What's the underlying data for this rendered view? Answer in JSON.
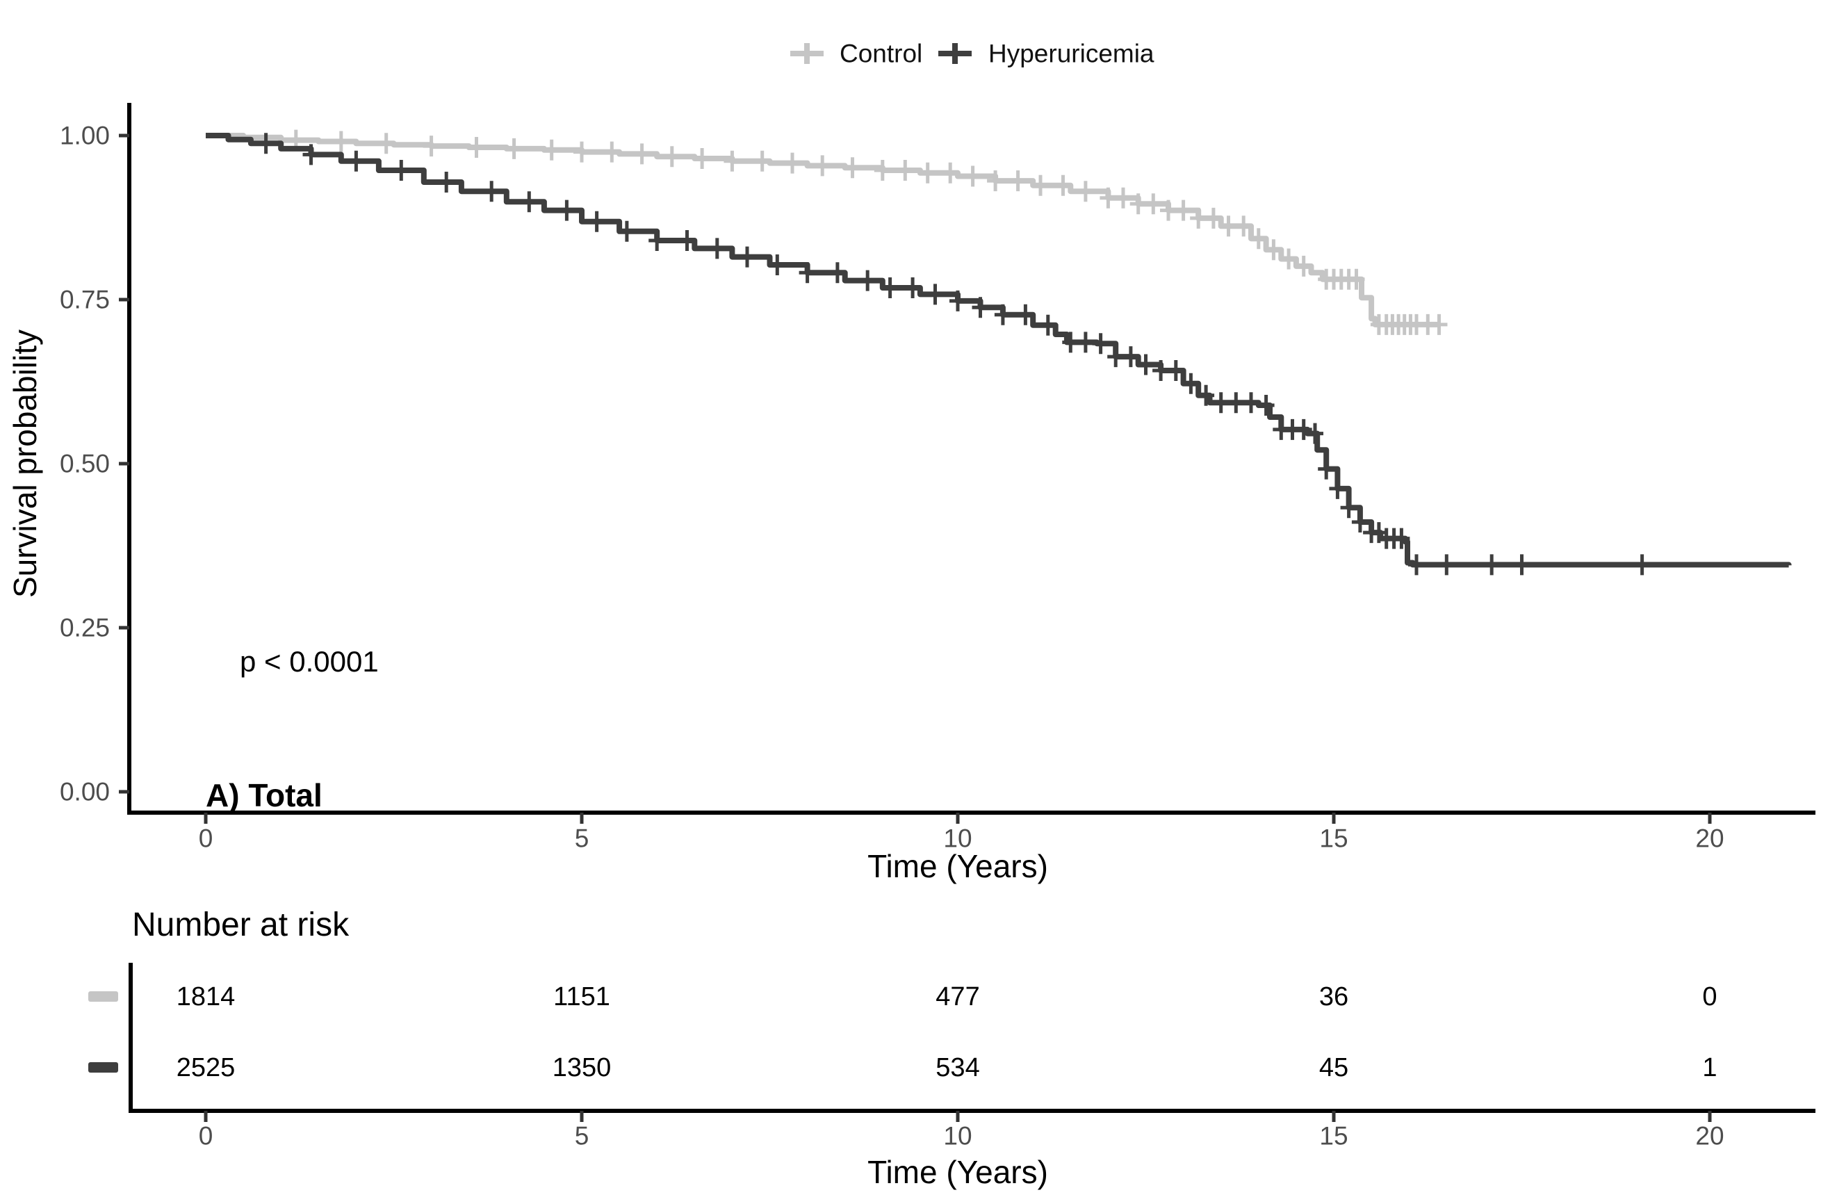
{
  "page": {
    "background": "#ffffff"
  },
  "legend": {
    "items": [
      {
        "label": "Control",
        "color": "#c5c5c5",
        "marker": "plus-icon"
      },
      {
        "label": "Hyperuricemia",
        "color": "#3e3e3e",
        "marker": "plus-icon"
      }
    ]
  },
  "main_plot": {
    "y_axis_label": "Survival probability",
    "x_axis_label": "Time (Years)",
    "p_value": "p < 0.0001",
    "panel_label": "A) Total",
    "y_ticks": [
      "1.00",
      "0.75",
      "0.50",
      "0.25",
      "0.00"
    ],
    "x_ticks": [
      "0",
      "5",
      "10",
      "15",
      "20"
    ]
  },
  "risk_table": {
    "title": "Number at risk",
    "x_axis_label": "Time (Years)",
    "x_ticks": [
      "0",
      "5",
      "10",
      "15",
      "20"
    ],
    "rows": [
      {
        "group": "Control",
        "color": "#c5c5c5",
        "counts": [
          "1814",
          "1151",
          "477",
          "36",
          "0"
        ]
      },
      {
        "group": "Hyperuricemia",
        "color": "#3e3e3e",
        "counts": [
          "2525",
          "1350",
          "534",
          "45",
          "1"
        ]
      }
    ]
  },
  "chart_data": {
    "type": "line",
    "subtype": "kaplan-meier-step",
    "title": "",
    "xlabel": "Time (Years)",
    "ylabel": "Survival probability",
    "xlim": [
      -1,
      21.6
    ],
    "ylim": [
      0,
      1.05
    ],
    "x_tick_values": [
      0,
      5,
      10,
      15,
      20
    ],
    "y_tick_values": [
      1.0,
      0.75,
      0.5,
      0.25,
      0.0
    ],
    "grid": false,
    "legend_position": "top-center",
    "annotations": [
      "p < 0.0001",
      "A) Total"
    ],
    "series": [
      {
        "name": "Control",
        "color": "#c5c5c5",
        "points": [
          [
            0,
            1.0
          ],
          [
            0.5,
            0.997
          ],
          [
            1,
            0.993
          ],
          [
            1.5,
            0.991
          ],
          [
            2,
            0.988
          ],
          [
            2.5,
            0.986
          ],
          [
            3,
            0.984
          ],
          [
            3.5,
            0.982
          ],
          [
            4,
            0.98
          ],
          [
            4.5,
            0.978
          ],
          [
            5,
            0.975
          ],
          [
            5.5,
            0.972
          ],
          [
            6,
            0.968
          ],
          [
            6.5,
            0.965
          ],
          [
            7,
            0.961
          ],
          [
            7.5,
            0.958
          ],
          [
            8,
            0.954
          ],
          [
            8.5,
            0.951
          ],
          [
            9,
            0.947
          ],
          [
            9.5,
            0.943
          ],
          [
            10,
            0.938
          ],
          [
            10.5,
            0.931
          ],
          [
            11,
            0.924
          ],
          [
            11.5,
            0.915
          ],
          [
            12,
            0.905
          ],
          [
            12.4,
            0.896
          ],
          [
            12.8,
            0.886
          ],
          [
            13.2,
            0.874
          ],
          [
            13.5,
            0.862
          ],
          [
            13.9,
            0.843
          ],
          [
            14.1,
            0.826
          ],
          [
            14.3,
            0.812
          ],
          [
            14.5,
            0.801
          ],
          [
            14.7,
            0.791
          ],
          [
            14.85,
            0.781
          ],
          [
            15.37,
            0.753
          ],
          [
            15.5,
            0.721
          ],
          [
            15.55,
            0.712
          ],
          [
            16.42,
            0.712
          ]
        ],
        "censor_times": [
          1.2,
          1.8,
          2.4,
          3.0,
          3.6,
          4.1,
          4.6,
          5.0,
          5.4,
          5.8,
          6.2,
          6.6,
          7.0,
          7.4,
          7.8,
          8.2,
          8.6,
          9.0,
          9.3,
          9.6,
          9.9,
          10.2,
          10.5,
          10.8,
          11.1,
          11.4,
          11.7,
          12.0,
          12.2,
          12.4,
          12.6,
          12.8,
          13.0,
          13.2,
          13.4,
          13.6,
          13.8,
          14.0,
          14.2,
          14.4,
          14.6,
          14.9,
          15.0,
          15.1,
          15.2,
          15.3,
          15.6,
          15.7,
          15.78,
          15.86,
          15.94,
          16.02,
          16.1,
          16.25,
          16.4
        ]
      },
      {
        "name": "Hyperuricemia",
        "color": "#3e3e3e",
        "points": [
          [
            0,
            1.0
          ],
          [
            0.3,
            0.994
          ],
          [
            0.6,
            0.988
          ],
          [
            1,
            0.98
          ],
          [
            1.4,
            0.971
          ],
          [
            1.8,
            0.961
          ],
          [
            2.3,
            0.947
          ],
          [
            2.9,
            0.929
          ],
          [
            3.4,
            0.915
          ],
          [
            4,
            0.899
          ],
          [
            4.5,
            0.886
          ],
          [
            5,
            0.869
          ],
          [
            5.5,
            0.854
          ],
          [
            6,
            0.84
          ],
          [
            6.5,
            0.828
          ],
          [
            7,
            0.815
          ],
          [
            7.5,
            0.803
          ],
          [
            8,
            0.791
          ],
          [
            8.5,
            0.779
          ],
          [
            9,
            0.768
          ],
          [
            9.5,
            0.758
          ],
          [
            10,
            0.748
          ],
          [
            10.3,
            0.738
          ],
          [
            10.6,
            0.727
          ],
          [
            11,
            0.711
          ],
          [
            11.3,
            0.697
          ],
          [
            11.45,
            0.685
          ],
          [
            11.85,
            0.683
          ],
          [
            12.1,
            0.663
          ],
          [
            12.4,
            0.651
          ],
          [
            12.7,
            0.642
          ],
          [
            13,
            0.622
          ],
          [
            13.2,
            0.604
          ],
          [
            13.35,
            0.593
          ],
          [
            14.0,
            0.589
          ],
          [
            14.15,
            0.571
          ],
          [
            14.3,
            0.552
          ],
          [
            14.65,
            0.546
          ],
          [
            14.78,
            0.521
          ],
          [
            14.9,
            0.492
          ],
          [
            15.05,
            0.462
          ],
          [
            15.2,
            0.433
          ],
          [
            15.35,
            0.411
          ],
          [
            15.5,
            0.395
          ],
          [
            15.62,
            0.386
          ],
          [
            15.95,
            0.381
          ],
          [
            15.98,
            0.349
          ],
          [
            16.05,
            0.346
          ],
          [
            21.05,
            0.345
          ]
        ],
        "censor_times": [
          0.8,
          1.4,
          2.0,
          2.6,
          3.2,
          3.8,
          4.3,
          4.8,
          5.2,
          5.6,
          6.0,
          6.4,
          6.8,
          7.2,
          7.6,
          8.0,
          8.4,
          8.8,
          9.1,
          9.4,
          9.7,
          10.0,
          10.3,
          10.6,
          10.9,
          11.2,
          11.5,
          11.7,
          11.9,
          12.1,
          12.3,
          12.5,
          12.7,
          12.9,
          13.1,
          13.3,
          13.5,
          13.7,
          13.9,
          14.1,
          14.3,
          14.45,
          14.6,
          14.75,
          14.9,
          15.05,
          15.2,
          15.35,
          15.5,
          15.6,
          15.7,
          15.8,
          15.9,
          16.1,
          16.5,
          17.1,
          17.5,
          19.1
        ]
      }
    ],
    "number_at_risk": {
      "times": [
        0,
        5,
        10,
        15,
        20
      ],
      "Control": [
        1814,
        1151,
        477,
        36,
        0
      ],
      "Hyperuricemia": [
        2525,
        1350,
        534,
        45,
        1
      ]
    }
  }
}
